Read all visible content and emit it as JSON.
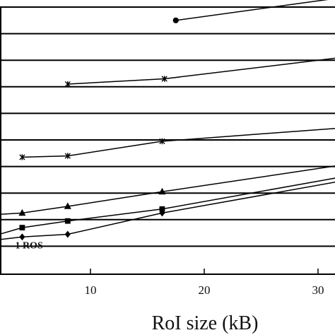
{
  "chart_data": {
    "type": "line",
    "xlabel": "RoI size (kB)",
    "x_ticks": [
      10,
      20,
      30
    ],
    "xlim": [
      2,
      32
    ],
    "ylim": [
      0,
      12
    ],
    "y_gridlines": [
      1,
      2,
      3,
      4,
      5,
      6,
      7,
      8,
      9,
      10,
      11,
      12
    ],
    "grid": true,
    "legend": "none",
    "annotations": [
      {
        "text": "1 ROS",
        "x": 4.5,
        "y": 1.05
      }
    ],
    "series": [
      {
        "marker": "circle",
        "x": [
          17.5,
          32
        ],
        "y": [
          9.5,
          10.35
        ]
      },
      {
        "marker": "star",
        "x": [
          8,
          16.5,
          32
        ],
        "y": [
          7.1,
          7.3,
          8.1
        ]
      },
      {
        "marker": "star",
        "x": [
          4,
          8,
          16.3,
          32
        ],
        "y": [
          4.35,
          4.4,
          4.95,
          5.45
        ]
      },
      {
        "marker": "triangle",
        "x": [
          2,
          4,
          8,
          16.3,
          32
        ],
        "y": [
          2.2,
          2.25,
          2.5,
          3.05,
          4.05
        ]
      },
      {
        "marker": "square",
        "x": [
          2,
          4,
          8,
          16.3,
          32
        ],
        "y": [
          1.45,
          1.7,
          1.95,
          2.4,
          3.6
        ]
      },
      {
        "marker": "diamond",
        "x": [
          2,
          4,
          8,
          16.3,
          32
        ],
        "y": [
          1.25,
          1.35,
          1.45,
          2.25,
          3.45
        ]
      }
    ]
  }
}
